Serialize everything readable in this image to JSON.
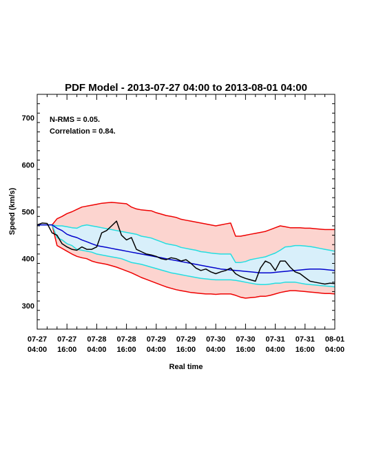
{
  "chart_data": {
    "type": "line",
    "title": "PDF Model - 2013-07-27 04:00 to 2013-08-01 04:00",
    "xlabel": "Real time",
    "ylabel": "Speed (km/s)",
    "xlim": [
      "07-27 04:00",
      "08-01 04:00"
    ],
    "ylim": [
      250,
      750
    ],
    "yticks": [
      300,
      400,
      500,
      600,
      700
    ],
    "xtick_labels": [
      {
        "date": "07-27",
        "time": "04:00"
      },
      {
        "date": "07-27",
        "time": "16:00"
      },
      {
        "date": "07-28",
        "time": "04:00"
      },
      {
        "date": "07-28",
        "time": "16:00"
      },
      {
        "date": "07-29",
        "time": "04:00"
      },
      {
        "date": "07-29",
        "time": "16:00"
      },
      {
        "date": "07-30",
        "time": "04:00"
      },
      {
        "date": "07-30",
        "time": "16:00"
      },
      {
        "date": "07-31",
        "time": "04:00"
      },
      {
        "date": "07-31",
        "time": "16:00"
      },
      {
        "date": "08-01",
        "time": "04:00"
      }
    ],
    "annotations": [
      "N-RMS = 0.05.",
      "Correlation = 0.84."
    ],
    "colors": {
      "outer_band_fill": "#fcd4cf",
      "outer_band_line": "#ee0000",
      "inner_band_fill": "#d8effa",
      "inner_band_line": "#22dde0",
      "median_line": "#0000cc",
      "observed_line": "#000000"
    },
    "x_hours": [
      0,
      2,
      4,
      6,
      8,
      10,
      12,
      14,
      16,
      18,
      20,
      22,
      24,
      26,
      28,
      30,
      32,
      34,
      36,
      38,
      40,
      42,
      44,
      46,
      48,
      50,
      52,
      54,
      56,
      58,
      60,
      62,
      64,
      66,
      68,
      70,
      72,
      74,
      76,
      78,
      80,
      82,
      84,
      86,
      88,
      90,
      92,
      94,
      96,
      98,
      100,
      102,
      104,
      106,
      108,
      110,
      112,
      114,
      116,
      118,
      120
    ],
    "series": [
      {
        "role": "observed",
        "values": [
          472,
          476,
          475,
          455,
          450,
          432,
          425,
          420,
          418,
          425,
          420,
          420,
          425,
          455,
          460,
          470,
          480,
          450,
          440,
          445,
          420,
          415,
          410,
          408,
          405,
          400,
          398,
          402,
          400,
          395,
          398,
          390,
          380,
          375,
          378,
          372,
          368,
          372,
          375,
          380,
          368,
          362,
          358,
          355,
          352,
          380,
          395,
          390,
          375,
          395,
          395,
          382,
          372,
          368,
          360,
          352,
          350,
          348,
          346,
          348,
          347
        ]
      },
      {
        "role": "median",
        "values": [
          472,
          472,
          472,
          472,
          465,
          460,
          452,
          448,
          445,
          440,
          436,
          432,
          428,
          426,
          424,
          422,
          420,
          418,
          416,
          414,
          412,
          410,
          408,
          406,
          404,
          402,
          400,
          398,
          396,
          394,
          392,
          390,
          388,
          386,
          384,
          382,
          380,
          378,
          377,
          376,
          375,
          374,
          373,
          372,
          371,
          370,
          370,
          370,
          371,
          372,
          373,
          374,
          375,
          376,
          377,
          378,
          378,
          378,
          377,
          376,
          375
        ]
      },
      {
        "role": "band-inner-upper",
        "values": [
          472,
          472,
          472,
          472,
          470,
          470,
          468,
          466,
          465,
          470,
          472,
          470,
          468,
          466,
          464,
          462,
          460,
          458,
          456,
          454,
          452,
          448,
          446,
          444,
          440,
          436,
          432,
          430,
          428,
          424,
          422,
          420,
          418,
          415,
          414,
          412,
          411,
          410,
          410,
          410,
          392,
          392,
          394,
          398,
          400,
          402,
          404,
          408,
          412,
          418,
          425,
          426,
          428,
          428,
          427,
          426,
          424,
          422,
          420,
          418,
          416
        ]
      },
      {
        "role": "band-inner-lower",
        "values": [
          472,
          472,
          472,
          472,
          445,
          440,
          432,
          428,
          420,
          418,
          416,
          414,
          410,
          408,
          406,
          404,
          402,
          400,
          396,
          392,
          390,
          388,
          385,
          382,
          379,
          376,
          373,
          370,
          368,
          366,
          364,
          362,
          360,
          358,
          357,
          356,
          355,
          355,
          355,
          355,
          354,
          352,
          350,
          348,
          346,
          345,
          345,
          346,
          348,
          348,
          350,
          350,
          350,
          348,
          346,
          345,
          344,
          343,
          342,
          341,
          340
        ]
      },
      {
        "role": "band-outer-upper",
        "values": [
          472,
          472,
          472,
          472,
          485,
          490,
          496,
          500,
          505,
          510,
          512,
          514,
          516,
          518,
          519,
          520,
          519,
          518,
          517,
          510,
          506,
          504,
          503,
          502,
          498,
          495,
          492,
          490,
          488,
          484,
          482,
          480,
          478,
          476,
          474,
          472,
          470,
          472,
          474,
          476,
          448,
          448,
          450,
          452,
          454,
          456,
          458,
          462,
          466,
          470,
          468,
          466,
          466,
          466,
          465,
          465,
          464,
          463,
          462,
          462,
          462
        ]
      },
      {
        "role": "band-outer-lower",
        "values": [
          472,
          472,
          472,
          472,
          428,
          422,
          416,
          410,
          405,
          402,
          400,
          395,
          392,
          390,
          388,
          385,
          382,
          378,
          374,
          370,
          365,
          360,
          356,
          352,
          348,
          344,
          340,
          337,
          334,
          332,
          330,
          328,
          327,
          326,
          325,
          325,
          324,
          325,
          325,
          325,
          322,
          318,
          316,
          317,
          318,
          320,
          320,
          322,
          325,
          328,
          330,
          332,
          332,
          331,
          330,
          329,
          328,
          327,
          326,
          326,
          325
        ]
      }
    ]
  }
}
